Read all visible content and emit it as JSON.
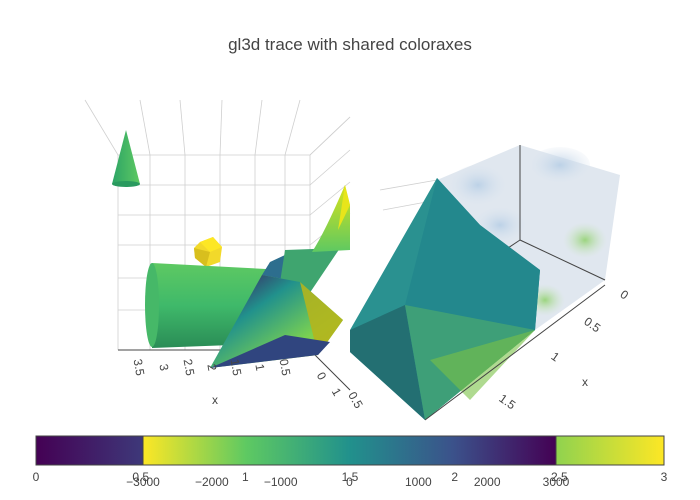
{
  "chart_data": {
    "type": "3d",
    "title": "gl3d trace with shared coloraxes",
    "colorscale": [
      "#440154",
      "#3b528b",
      "#21918c",
      "#5ec962",
      "#fde725"
    ],
    "scenes": [
      {
        "traces": [
          "cone",
          "streamtube",
          "isosurface",
          "mesh3d"
        ],
        "xaxis": {
          "title": "x",
          "ticks": [
            "3.5",
            "3",
            "2.5",
            "2",
            "1.5",
            "1",
            "0.5",
            "0",
            "1",
            "0.5"
          ]
        }
      },
      {
        "traces": [
          "volume",
          "isosurface"
        ],
        "xaxis": {
          "title": "x",
          "ticks": [
            "0",
            "0.5",
            "1",
            "1.5"
          ]
        }
      }
    ],
    "colorbars": [
      {
        "name": "coloraxis",
        "range": [
          0,
          3
        ],
        "ticks": [
          "0",
          "0.5",
          "1",
          "1.5",
          "2",
          "2.5",
          "3"
        ],
        "reversed": false
      },
      {
        "name": "coloraxis2",
        "range": [
          -3000,
          3000
        ],
        "ticks": [
          "−3000",
          "−2000",
          "−1000",
          "0",
          "1000",
          "2000",
          "3000"
        ],
        "reversed": true
      }
    ]
  }
}
